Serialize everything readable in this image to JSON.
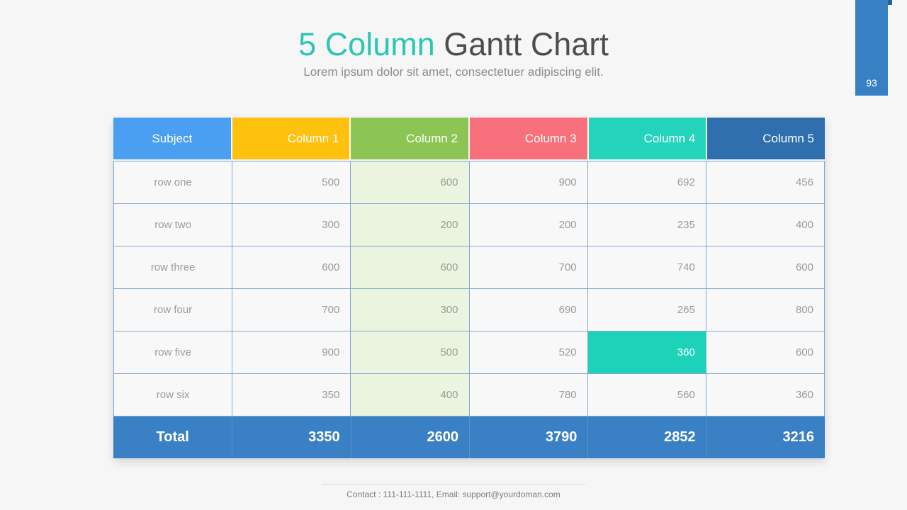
{
  "page": {
    "number": "93"
  },
  "header": {
    "title_accent": "5 Column",
    "title_rest": "Gantt Chart",
    "subtitle": "Lorem ipsum dolor sit amet, consectetuer  adipiscing elit."
  },
  "colors": {
    "accent_teal": "#2CC6B4",
    "title_gray": "#4D4D4D",
    "ribbon_blue": "#3880C4",
    "ribbon_dark": "#2C608D",
    "total_blue": "#3A80C5",
    "highlight_teal": "#1CD2B9",
    "col2_tint": "#EAF4DE",
    "cell_border": "#80A9CE"
  },
  "table": {
    "columns": [
      {
        "label": "Subject",
        "color": "#4B9FF0"
      },
      {
        "label": "Column 1",
        "color": "#FEC10D"
      },
      {
        "label": "Column 2",
        "color": "#8DC554"
      },
      {
        "label": "Column 3",
        "color": "#F8707B"
      },
      {
        "label": "Column 4",
        "color": "#23D3BC"
      },
      {
        "label": "Column 5",
        "color": "#2F6FAE"
      }
    ],
    "rows": [
      {
        "label": "row one",
        "values": [
          "500",
          "600",
          "900",
          "692",
          "456"
        ]
      },
      {
        "label": "row two",
        "values": [
          "300",
          "200",
          "200",
          "235",
          "400"
        ]
      },
      {
        "label": "row three",
        "values": [
          "600",
          "600",
          "700",
          "740",
          "600"
        ]
      },
      {
        "label": "row four",
        "values": [
          "700",
          "300",
          "690",
          "265",
          "800"
        ]
      },
      {
        "label": "row five",
        "values": [
          "900",
          "500",
          "520",
          "360",
          "600"
        ]
      },
      {
        "label": "row six",
        "values": [
          "350",
          "400",
          "780",
          "560",
          "360"
        ]
      }
    ],
    "total": {
      "label": "Total",
      "values": [
        "3350",
        "2600",
        "3790",
        "2852",
        "3216"
      ]
    }
  },
  "chart_data": {
    "type": "table",
    "title": "5 Column Gantt Chart",
    "columns": [
      "Subject",
      "Column 1",
      "Column 2",
      "Column 3",
      "Column 4",
      "Column 5"
    ],
    "rows": [
      [
        "row one",
        500,
        600,
        900,
        692,
        456
      ],
      [
        "row two",
        300,
        200,
        200,
        235,
        400
      ],
      [
        "row three",
        600,
        600,
        700,
        740,
        600
      ],
      [
        "row four",
        700,
        300,
        690,
        265,
        800
      ],
      [
        "row five",
        900,
        500,
        520,
        360,
        600
      ],
      [
        "row six",
        350,
        400,
        780,
        560,
        360
      ],
      [
        "Total",
        3350,
        2600,
        3790,
        2852,
        3216
      ]
    ],
    "notes": "Cell row five / Column 4 (360) is highlighted teal; Column 2 body cells have light green tint"
  },
  "footer": {
    "contact": "Contact : 111-111-1111, Email: support@yourdoman.com"
  }
}
